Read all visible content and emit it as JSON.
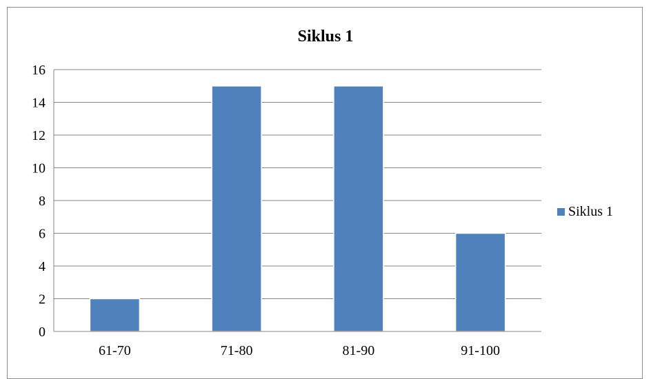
{
  "chart_data": {
    "type": "bar",
    "title": "Siklus 1",
    "categories": [
      "61-70",
      "71-80",
      "81-90",
      "91-100"
    ],
    "series": [
      {
        "name": "Siklus 1",
        "values": [
          2,
          15,
          15,
          6
        ],
        "color": "#4f81bd"
      }
    ],
    "ylim": [
      0,
      16
    ],
    "yticks": [
      0,
      2,
      4,
      6,
      8,
      10,
      12,
      14,
      16
    ],
    "grid": true,
    "legend": "right"
  }
}
